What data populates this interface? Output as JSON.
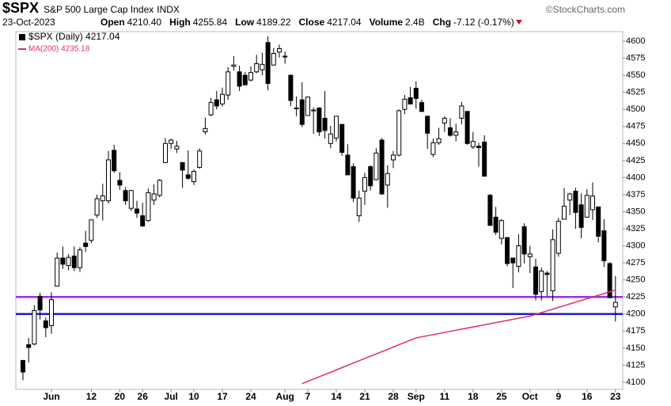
{
  "header": {
    "symbol": "$SPX",
    "name": "S&P 500 Large Cap Index",
    "exchange": "INDX",
    "source": "©StockCharts.com",
    "date": "23-Oct-2023",
    "stats": [
      {
        "label": "Open",
        "value": "4210.40"
      },
      {
        "label": "High",
        "value": "4255.84"
      },
      {
        "label": "Low",
        "value": "4189.22"
      },
      {
        "label": "Close",
        "value": "4217.04"
      },
      {
        "label": "Volume",
        "value": "2.4B"
      },
      {
        "label": "Chg",
        "value": "-7.12 (-0.17%)"
      }
    ]
  },
  "chart_data": {
    "type": "candlestick",
    "categories": [
      null,
      null,
      null,
      null,
      null,
      "Jun",
      null,
      null,
      null,
      null,
      null,
      null,
      "12",
      null,
      null,
      null,
      null,
      "20",
      null,
      null,
      null,
      "26",
      null,
      null,
      null,
      null,
      "Jul",
      null,
      null,
      null,
      "10",
      null,
      null,
      null,
      null,
      "17",
      null,
      null,
      null,
      null,
      "24",
      null,
      null,
      null,
      null,
      null,
      "Aug",
      null,
      null,
      null,
      "7",
      null,
      null,
      null,
      null,
      "14",
      null,
      null,
      null,
      null,
      "21",
      null,
      null,
      null,
      null,
      "28",
      null,
      null,
      null,
      "Sep",
      null,
      null,
      null,
      null,
      "11",
      null,
      null,
      null,
      null,
      "18",
      null,
      null,
      null,
      null,
      "25",
      null,
      null,
      null,
      null,
      "Oct",
      null,
      null,
      null,
      null,
      "9",
      null,
      null,
      null,
      null,
      "16",
      null,
      null,
      null,
      null,
      "23"
    ],
    "series": [
      {
        "name": "$SPX (Daily) 4217.04",
        "color": "#000000",
        "up_color": "#ffffff",
        "open": [
          4132,
          4155,
          4156,
          4226,
          4190,
          4183,
          4241,
          4282,
          4271,
          4285,
          4268,
          4304,
          4308,
          4345,
          4366,
          4366,
          4440,
          4396,
          4381,
          4355,
          4354,
          4344,
          4337,
          4367,
          4374,
          4422,
          4450,
          4442,
          4422,
          4404,
          4394,
          4415,
          4467,
          4492,
          4514,
          4508,
          4521,
          4563,
          4555,
          4550,
          4543,
          4555,
          4558,
          4598,
          4565,
          4584,
          4578,
          4550,
          4502,
          4514,
          4491,
          4498,
          4502,
          4487,
          4450,
          4458,
          4478,
          4433,
          4416,
          4344,
          4380,
          4416,
          4397,
          4455,
          4389,
          4426,
          4433,
          4500,
          4517,
          4531,
          4510,
          4490,
          4434,
          4451,
          4480,
          4473,
          4462,
          4487,
          4497,
          4445,
          4446,
          4452,
          4374,
          4342,
          4311,
          4312,
          4282,
          4270,
          4328,
          4284,
          4269,
          4233,
          4260,
          4234,
          4289,
          4339,
          4367,
          4380,
          4360,
          4342,
          4353,
          4357,
          4322,
          4274,
          4210.4
        ],
        "high": [
          4132,
          4165,
          4213,
          4231,
          4195,
          4232,
          4290,
          4299,
          4288,
          4299,
          4298,
          4322,
          4338,
          4375,
          4391,
          4439,
          4448,
          4408,
          4386,
          4382,
          4366,
          4363,
          4384,
          4390,
          4398,
          4458,
          4457,
          4454,
          4423,
          4440,
          4412,
          4443,
          4488,
          4517,
          4527,
          4532,
          4562,
          4578,
          4564,
          4555,
          4563,
          4580,
          4583,
          4607,
          4590,
          4595,
          4585,
          4551,
          4519,
          4540,
          4519,
          4503,
          4503,
          4527,
          4476,
          4490,
          4478,
          4449,
          4421,
          4381,
          4407,
          4418,
          4443,
          4458,
          4418,
          4439,
          4500,
          4521,
          4533,
          4541,
          4514,
          4490,
          4457,
          4473,
          4490,
          4487,
          4479,
          4511,
          4497,
          4467,
          4451,
          4462,
          4376,
          4357,
          4339,
          4313,
          4282,
          4317,
          4333,
          4300,
          4281,
          4268,
          4263,
          4324,
          4341,
          4385,
          4378,
          4385,
          4377,
          4383,
          4393,
          4357,
          4339,
          4276,
          4255.84
        ],
        "low": [
          4103,
          4129,
          4154,
          4192,
          4166,
          4171,
          4241,
          4266,
          4264,
          4263,
          4262,
          4291,
          4304,
          4341,
          4337,
          4362,
          4407,
          4382,
          4360,
          4351,
          4341,
          4328,
          4335,
          4360,
          4371,
          4422,
          4442,
          4436,
          4385,
          4397,
          4389,
          4413,
          4463,
          4490,
          4500,
          4504,
          4514,
          4557,
          4527,
          4535,
          4541,
          4553,
          4550,
          4528,
          4564,
          4576,
          4567,
          4505,
          4490,
          4474,
          4491,
          4464,
          4461,
          4457,
          4443,
          4453,
          4432,
          4404,
          4364,
          4335,
          4360,
          4381,
          4396,
          4375,
          4356,
          4414,
          4431,
          4493,
          4507,
          4501,
          4496,
          4442,
          4430,
          4448,
          4467,
          4460,
          4453,
          4478,
          4448,
          4442,
          4416,
          4402,
          4329,
          4316,
          4302,
          4270,
          4238,
          4261,
          4274,
          4260,
          4220,
          4220,
          4226,
          4219,
          4284,
          4339,
          4345,
          4325,
          4311,
          4342,
          4338,
          4305,
          4269,
          4223,
          4189.22
        ],
        "close": [
          4115,
          4151,
          4205,
          4206,
          4180,
          4221,
          4282,
          4273,
          4283,
          4268,
          4294,
          4299,
          4338,
          4369,
          4373,
          4426,
          4410,
          4389,
          4366,
          4381,
          4348,
          4329,
          4378,
          4376,
          4396,
          4450,
          4455,
          4446,
          4411,
          4399,
          4409,
          4439,
          4472,
          4510,
          4505,
          4522,
          4555,
          4565,
          4534,
          4536,
          4554,
          4567,
          4566,
          4538,
          4582,
          4589,
          4577,
          4513,
          4502,
          4478,
          4518,
          4499,
          4467,
          4469,
          4464,
          4490,
          4437,
          4404,
          4370,
          4370,
          4400,
          4388,
          4436,
          4376,
          4406,
          4433,
          4498,
          4515,
          4508,
          4516,
          4497,
          4465,
          4451,
          4457,
          4487,
          4462,
          4467,
          4505,
          4450,
          4453,
          4444,
          4402,
          4330,
          4320,
          4337,
          4274,
          4275,
          4300,
          4288,
          4288,
          4229,
          4263,
          4258,
          4309,
          4336,
          4358,
          4376,
          4349,
          4327,
          4374,
          4373,
          4314,
          4278,
          4224,
          4217.04
        ]
      },
      {
        "name": "MA(200) 4235.18",
        "color": "#e0315a",
        "values": [
          null,
          null,
          null,
          null,
          null,
          null,
          null,
          null,
          null,
          null,
          null,
          null,
          null,
          null,
          null,
          null,
          null,
          null,
          null,
          null,
          null,
          null,
          null,
          null,
          null,
          null,
          null,
          null,
          null,
          null,
          null,
          null,
          null,
          null,
          null,
          null,
          null,
          null,
          null,
          null,
          null,
          null,
          null,
          null,
          null,
          null,
          null,
          null,
          null,
          4098.0,
          4101.35,
          4104.7,
          4108.05,
          4111.4,
          4114.75,
          4118.1,
          4121.45,
          4124.8,
          4128.15,
          4131.5,
          4134.85,
          4138.2,
          4141.55,
          4144.9,
          4148.25,
          4151.6,
          4154.95,
          4158.3,
          4161.65,
          4165.0,
          4166.6,
          4168.2,
          4169.8,
          4171.4,
          4173.0,
          4174.6,
          4176.2,
          4177.8,
          4179.4,
          4181.0,
          4182.6,
          4184.2,
          4185.8,
          4187.4,
          4189.0,
          4190.6,
          4192.2,
          4193.8,
          4195.4,
          4197.0,
          4199.55,
          4202.09,
          4204.64,
          4207.18,
          4209.73,
          4212.27,
          4214.82,
          4217.36,
          4219.91,
          4222.45,
          4225.0,
          4227.55,
          4230.09,
          4232.64,
          4235.18
        ]
      }
    ],
    "hlines": [
      {
        "value": 4225,
        "color": "#9b2fe3"
      },
      {
        "value": 4200,
        "color": "#1b1bd2"
      }
    ],
    "ylim": [
      4090,
      4612
    ],
    "yticks": [
      4100,
      4125,
      4150,
      4175,
      4200,
      4225,
      4250,
      4275,
      4300,
      4325,
      4350,
      4375,
      4400,
      4425,
      4450,
      4475,
      4500,
      4525,
      4550,
      4575,
      4600
    ],
    "grid": false
  }
}
